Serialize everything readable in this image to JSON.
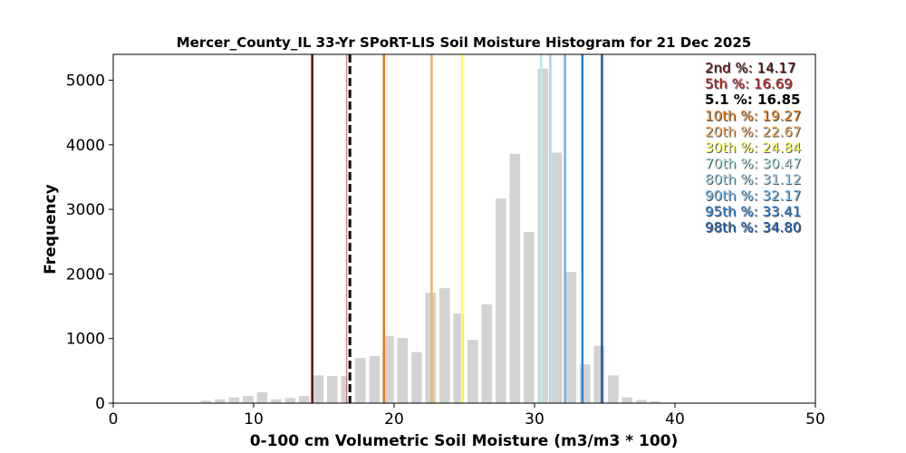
{
  "chart_data": {
    "type": "bar",
    "title": "Mercer_County_IL 33-Yr SPoRT-LIS Soil Moisture Histogram for 21 Dec 2025",
    "xlabel": "0-100 cm Volumetric Soil Moisture (m3/m3 * 100)",
    "ylabel": "Frequency",
    "xlim": [
      0,
      50
    ],
    "ylim": [
      0,
      5400
    ],
    "xticks": [
      0,
      10,
      20,
      30,
      40,
      50
    ],
    "yticks": [
      0,
      1000,
      2000,
      3000,
      4000,
      5000
    ],
    "grid": false,
    "bar_color": "#d3d3d3",
    "bins": [
      {
        "x": 6.6,
        "value": 40
      },
      {
        "x": 7.6,
        "value": 60
      },
      {
        "x": 8.6,
        "value": 90
      },
      {
        "x": 9.6,
        "value": 110
      },
      {
        "x": 10.6,
        "value": 170
      },
      {
        "x": 11.6,
        "value": 60
      },
      {
        "x": 12.6,
        "value": 80
      },
      {
        "x": 13.6,
        "value": 110
      },
      {
        "x": 14.6,
        "value": 430
      },
      {
        "x": 15.6,
        "value": 420
      },
      {
        "x": 16.6,
        "value": 420
      },
      {
        "x": 17.6,
        "value": 700
      },
      {
        "x": 18.6,
        "value": 730
      },
      {
        "x": 19.6,
        "value": 1040
      },
      {
        "x": 20.6,
        "value": 1010
      },
      {
        "x": 21.6,
        "value": 790
      },
      {
        "x": 22.6,
        "value": 1710
      },
      {
        "x": 23.6,
        "value": 1780
      },
      {
        "x": 24.6,
        "value": 1390
      },
      {
        "x": 25.6,
        "value": 980
      },
      {
        "x": 26.6,
        "value": 1530
      },
      {
        "x": 27.6,
        "value": 3170
      },
      {
        "x": 28.6,
        "value": 3860
      },
      {
        "x": 29.6,
        "value": 2650
      },
      {
        "x": 30.6,
        "value": 5180
      },
      {
        "x": 31.6,
        "value": 3880
      },
      {
        "x": 32.6,
        "value": 2030
      },
      {
        "x": 33.6,
        "value": 600
      },
      {
        "x": 34.6,
        "value": 890
      },
      {
        "x": 35.6,
        "value": 430
      },
      {
        "x": 36.6,
        "value": 90
      },
      {
        "x": 37.6,
        "value": 50
      },
      {
        "x": 38.6,
        "value": 30
      },
      {
        "x": 39.6,
        "value": 10
      }
    ],
    "percentiles": [
      {
        "label": "2nd %: 14.17",
        "value": 14.17,
        "color": "#5c0f0f"
      },
      {
        "label": "5th %: 16.69",
        "value": 16.69,
        "color": "#b22222"
      },
      {
        "label": "5.1 %: 16.85",
        "value": 16.85,
        "color": "#000000",
        "current": true
      },
      {
        "label": "10th %: 19.27",
        "value": 19.27,
        "color": "#e07b1a"
      },
      {
        "label": "20th %: 22.67",
        "value": 22.67,
        "color": "#f5b26b"
      },
      {
        "label": "30th %: 24.84",
        "value": 24.84,
        "color": "#ffff66"
      },
      {
        "label": "70th %: 30.47",
        "value": 30.47,
        "color": "#b8ece8"
      },
      {
        "label": "80th %: 31.12",
        "value": 31.12,
        "color": "#a9d3ee"
      },
      {
        "label": "90th %: 32.17",
        "value": 32.17,
        "color": "#6bb3e8"
      },
      {
        "label": "95th %: 33.41",
        "value": 33.41,
        "color": "#2b7fd4"
      },
      {
        "label": "98th %: 34.80",
        "value": 34.8,
        "color": "#1a5aa8"
      }
    ],
    "legend_placement": "top-right"
  }
}
